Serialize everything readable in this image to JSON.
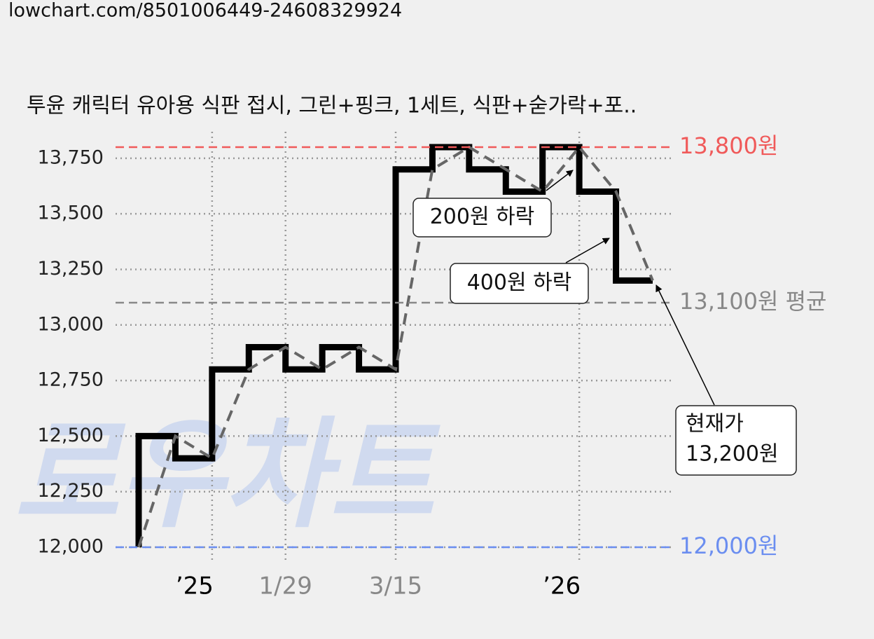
{
  "header": {
    "url": "lowchart.com/8501006449-24608329924"
  },
  "chart_data": {
    "type": "step",
    "title": "투윤 캐릭터 유아용 식판 접시, 그린+핑크, 1세트, 식판+숟가락+포..",
    "watermark": "로우차트",
    "series": [
      {
        "color": "#000000",
        "style": "solid",
        "x": [
          0,
          0,
          1,
          2,
          3,
          4,
          5,
          6,
          7,
          8,
          9,
          10,
          11,
          12,
          13,
          14
        ],
        "values": [
          12000,
          12500,
          12400,
          12800,
          12900,
          12800,
          12900,
          12800,
          13700,
          13800,
          13700,
          13600,
          13800,
          13600,
          13200,
          13200
        ]
      },
      {
        "color": "#666666",
        "style": "dashed",
        "x": [
          0,
          1,
          2,
          3,
          4,
          5,
          6,
          7,
          8,
          9,
          10,
          11,
          12,
          13,
          14
        ],
        "values": [
          12000,
          12500,
          12400,
          12800,
          12900,
          12800,
          12900,
          12800,
          13700,
          13800,
          13700,
          13600,
          13800,
          13600,
          13200
        ]
      }
    ],
    "xlim": [
      0,
      14
    ],
    "xticks": [
      {
        "value": 2,
        "label": "’25",
        "color": "#000000"
      },
      {
        "value": 4,
        "label": "1/29",
        "color": "#888888"
      },
      {
        "value": 7,
        "label": "3/15",
        "color": "#888888"
      },
      {
        "value": 12,
        "label": "’26",
        "color": "#000000"
      }
    ],
    "ylim": [
      12000,
      13800
    ],
    "yticks": [
      {
        "value": 12000,
        "label": "12,000"
      },
      {
        "value": 12250,
        "label": "12,250"
      },
      {
        "value": 12500,
        "label": "12,500"
      },
      {
        "value": 12750,
        "label": "12,750"
      },
      {
        "value": 13000,
        "label": "13,000"
      },
      {
        "value": 13250,
        "label": "13,250"
      },
      {
        "value": 13500,
        "label": "13,500"
      },
      {
        "value": 13750,
        "label": "13,750"
      }
    ],
    "grid": true,
    "ref_lines": [
      {
        "value": 13800,
        "label": "13,800원",
        "color": "#f05a5a"
      },
      {
        "value": 13100,
        "label": "13,100원 평균",
        "color": "#888888"
      },
      {
        "value": 12000,
        "label": "12,000원",
        "color": "#6b8ef0"
      }
    ],
    "annotations": [
      "200원 하락",
      "400원 하락",
      [
        "현재가",
        "13,200원"
      ]
    ]
  }
}
